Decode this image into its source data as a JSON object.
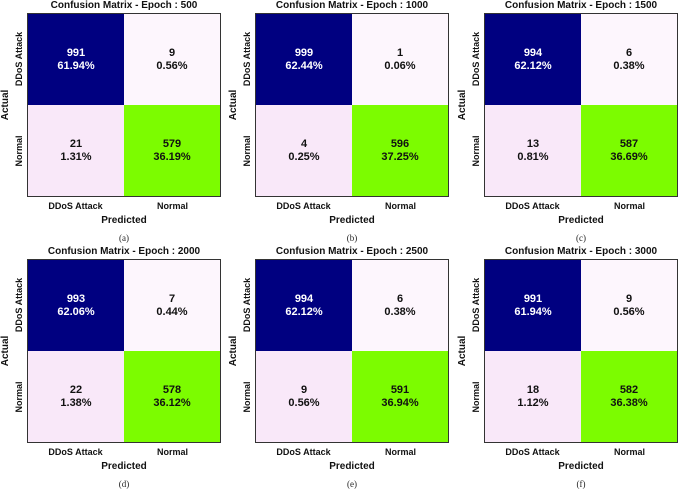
{
  "colors": {
    "tp": "#000080",
    "tn": "#7cfc00",
    "fp": "#fdf6fd",
    "fn": "#f9e8f9",
    "text_dark": "#111111",
    "text_light": "#ffffff"
  },
  "chart_data": [
    {
      "type": "heatmap",
      "title": "Confusion Matrix - Epoch : 500",
      "caption": "(a)",
      "xlabel": "Predicted",
      "ylabel": "Actual",
      "x_ticks": [
        "DDoS Attack",
        "Normal"
      ],
      "y_ticks": [
        "DDoS Attack",
        "Normal"
      ],
      "matrix": [
        [
          991,
          9
        ],
        [
          21,
          579
        ]
      ],
      "percent": [
        [
          "61.94%",
          "0.56%"
        ],
        [
          "1.31%",
          "36.19%"
        ]
      ]
    },
    {
      "type": "heatmap",
      "title": "Confusion Matrix - Epoch : 1000",
      "caption": "(b)",
      "xlabel": "Predicted",
      "ylabel": "Actual",
      "x_ticks": [
        "DDoS Attack",
        "Normal"
      ],
      "y_ticks": [
        "DDoS Attack",
        "Normal"
      ],
      "matrix": [
        [
          999,
          1
        ],
        [
          4,
          596
        ]
      ],
      "percent": [
        [
          "62.44%",
          "0.06%"
        ],
        [
          "0.25%",
          "37.25%"
        ]
      ]
    },
    {
      "type": "heatmap",
      "title": "Confusion Matrix - Epoch : 1500",
      "caption": "(c)",
      "xlabel": "Predicted",
      "ylabel": "Actual",
      "x_ticks": [
        "DDoS Attack",
        "Normal"
      ],
      "y_ticks": [
        "DDoS Attack",
        "Normal"
      ],
      "matrix": [
        [
          994,
          6
        ],
        [
          13,
          587
        ]
      ],
      "percent": [
        [
          "62.12%",
          "0.38%"
        ],
        [
          "0.81%",
          "36.69%"
        ]
      ]
    },
    {
      "type": "heatmap",
      "title": "Confusion Matrix - Epoch : 2000",
      "caption": "(d)",
      "xlabel": "Predicted",
      "ylabel": "Actual",
      "x_ticks": [
        "DDoS Attack",
        "Normal"
      ],
      "y_ticks": [
        "DDoS Attack",
        "Normal"
      ],
      "matrix": [
        [
          993,
          7
        ],
        [
          22,
          578
        ]
      ],
      "percent": [
        [
          "62.06%",
          "0.44%"
        ],
        [
          "1.38%",
          "36.12%"
        ]
      ]
    },
    {
      "type": "heatmap",
      "title": "Confusion Matrix - Epoch : 2500",
      "caption": "(e)",
      "xlabel": "Predicted",
      "ylabel": "Actual",
      "x_ticks": [
        "DDoS Attack",
        "Normal"
      ],
      "y_ticks": [
        "DDoS Attack",
        "Normal"
      ],
      "matrix": [
        [
          994,
          6
        ],
        [
          9,
          591
        ]
      ],
      "percent": [
        [
          "62.12%",
          "0.38%"
        ],
        [
          "0.56%",
          "36.94%"
        ]
      ]
    },
    {
      "type": "heatmap",
      "title": "Confusion Matrix - Epoch : 3000",
      "caption": "(f)",
      "xlabel": "Predicted",
      "ylabel": "Actual",
      "x_ticks": [
        "DDoS Attack",
        "Normal"
      ],
      "y_ticks": [
        "DDoS Attack",
        "Normal"
      ],
      "matrix": [
        [
          991,
          9
        ],
        [
          18,
          582
        ]
      ],
      "percent": [
        [
          "61.94%",
          "0.56%"
        ],
        [
          "1.12%",
          "36.38%"
        ]
      ]
    }
  ]
}
